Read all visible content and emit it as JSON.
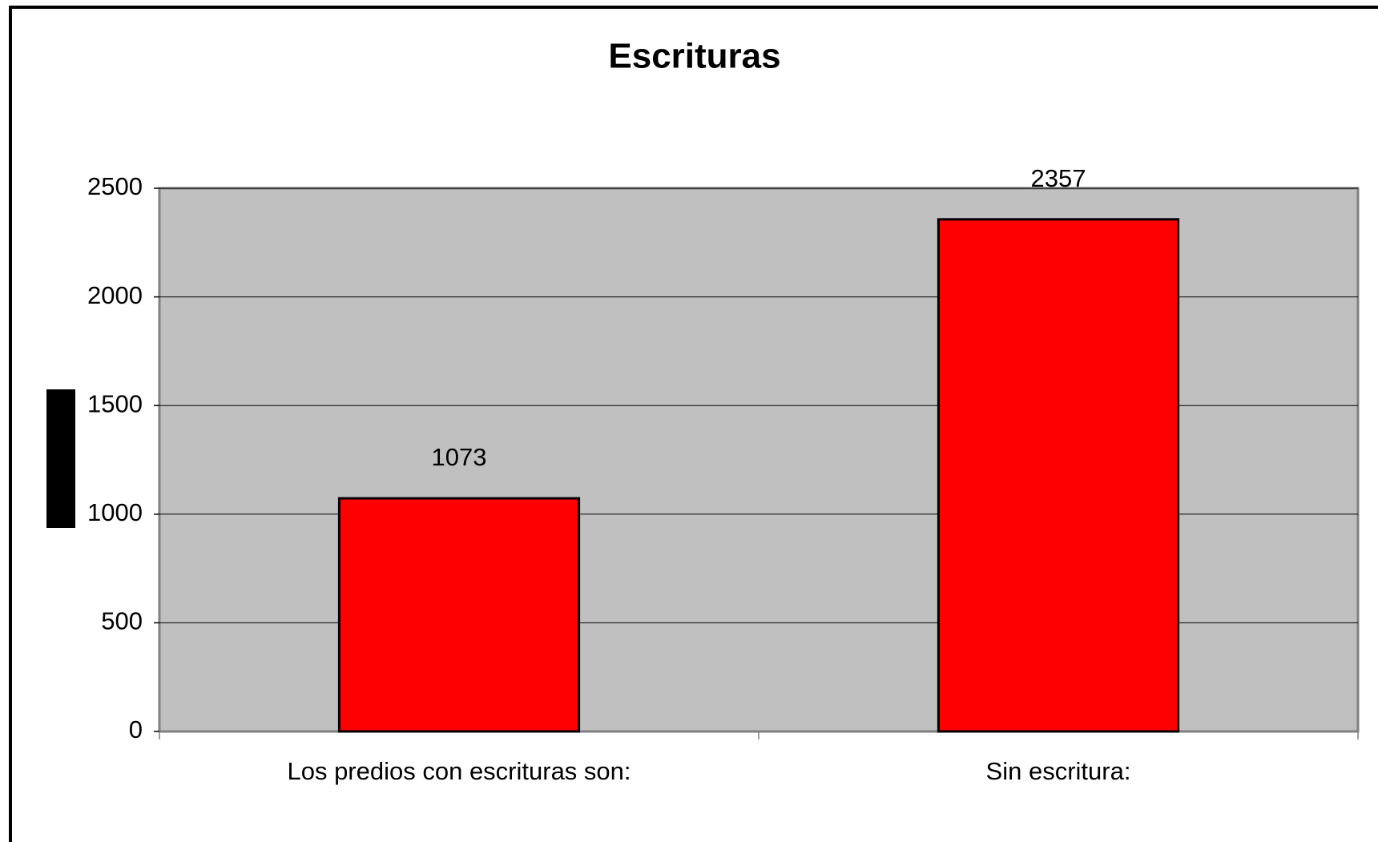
{
  "chart_data": {
    "type": "bar",
    "title": "Escrituras",
    "categories": [
      "Los predios con escrituras son:",
      "Sin escritura:"
    ],
    "values": [
      1073,
      2357
    ],
    "color": "#ff0000",
    "ylim": [
      0,
      2500
    ],
    "yticks": [
      0,
      500,
      1000,
      1500,
      2000,
      2500
    ],
    "grid": true
  }
}
